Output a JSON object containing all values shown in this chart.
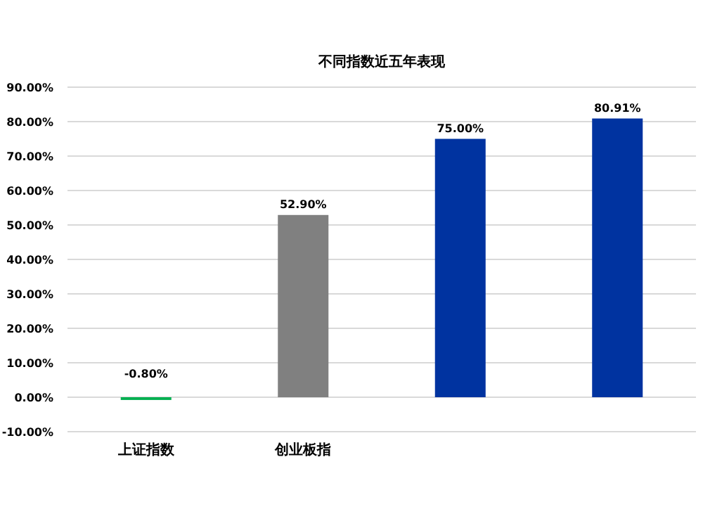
{
  "chart_data": {
    "type": "bar",
    "title": "不同指数近五年表现",
    "categories": [
      "上证指数",
      "创业板指",
      null,
      null
    ],
    "values": [
      -0.8,
      52.9,
      75.0,
      80.91
    ],
    "colors": [
      "#00b050",
      "#808080",
      "#0033a0",
      "#0033a0"
    ],
    "value_labels": [
      "-0.80%",
      "52.90%",
      "75.00%",
      "80.91%"
    ],
    "ylim": [
      -10,
      90
    ],
    "yticks": [
      {
        "value": -10,
        "label": "-10.00%"
      },
      {
        "value": 0,
        "label": "0.00%"
      },
      {
        "value": 10,
        "label": "10.00%"
      },
      {
        "value": 20,
        "label": "20.00%"
      },
      {
        "value": 30,
        "label": "30.00%"
      },
      {
        "value": 40,
        "label": "40.00%"
      },
      {
        "value": 50,
        "label": "50.00%"
      },
      {
        "value": 60,
        "label": "60.00%"
      },
      {
        "value": 70,
        "label": "70.00%"
      },
      {
        "value": 80,
        "label": "80.00%"
      },
      {
        "value": 90,
        "label": "90.00%"
      }
    ],
    "grid": "y"
  }
}
